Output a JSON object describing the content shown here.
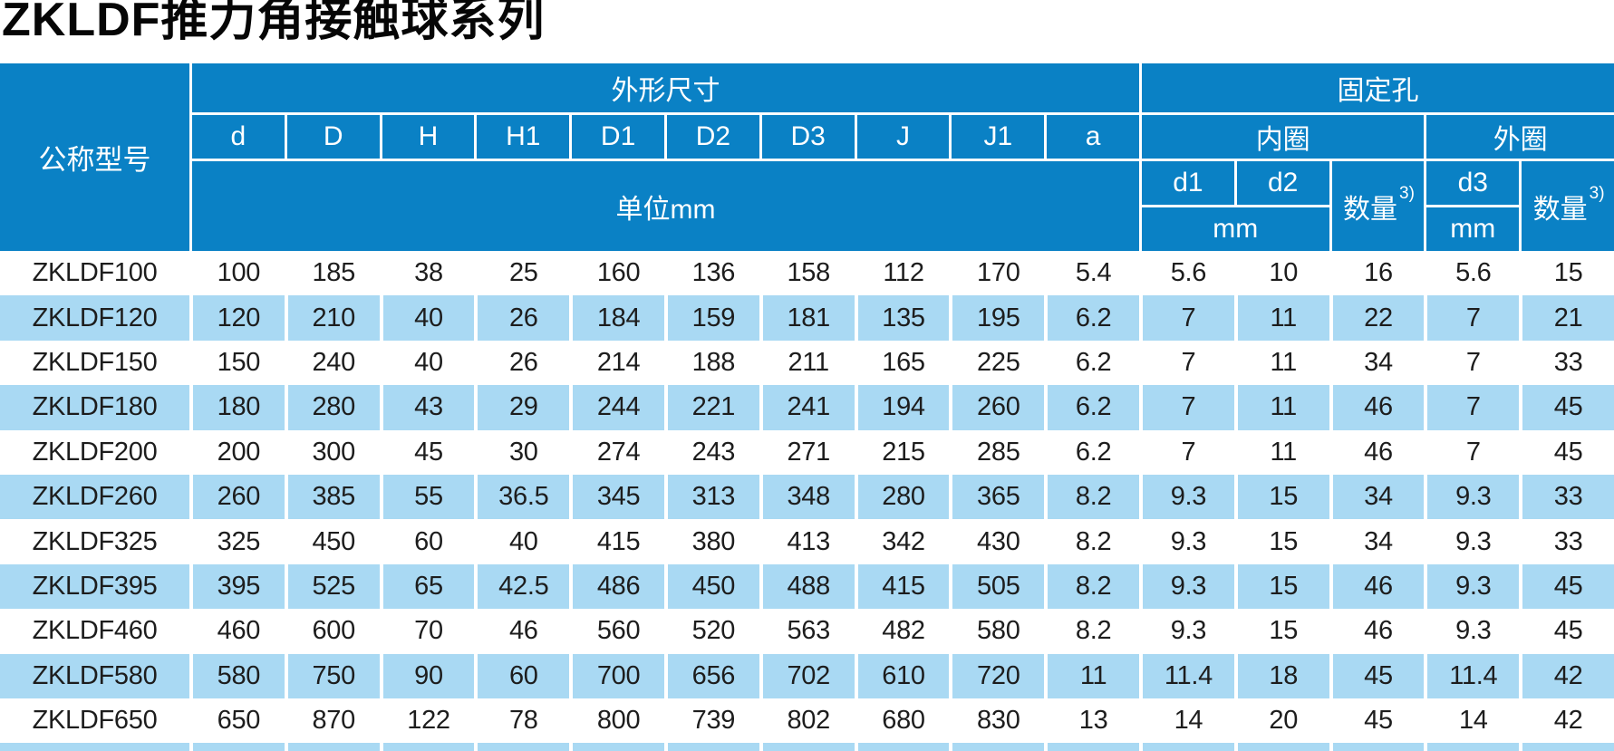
{
  "title": "ZKLDF推力角接触球系列",
  "table": {
    "model_header": "公称型号",
    "dim_section": "外形尺寸",
    "dim_cols": [
      "d",
      "D",
      "H",
      "H1",
      "D1",
      "D2",
      "D3",
      "J",
      "J1",
      "a"
    ],
    "dim_unit": "单位mm",
    "fix_section": "固定孔",
    "inner_label": "内圈",
    "outer_label": "外圈",
    "inner_cols": {
      "d1": "d1",
      "d2": "d2"
    },
    "outer_col": "d3",
    "qty_label": "数量",
    "qty_sup": "3)",
    "mm_inner": "mm",
    "mm_outer": "mm",
    "rows": [
      {
        "model": "ZKLDF100",
        "values": [
          "100",
          "185",
          "38",
          "25",
          "160",
          "136",
          "158",
          "112",
          "170",
          "5.4",
          "5.6",
          "10",
          "16",
          "5.6",
          "15"
        ]
      },
      {
        "model": "ZKLDF120",
        "values": [
          "120",
          "210",
          "40",
          "26",
          "184",
          "159",
          "181",
          "135",
          "195",
          "6.2",
          "7",
          "11",
          "22",
          "7",
          "21"
        ]
      },
      {
        "model": "ZKLDF150",
        "values": [
          "150",
          "240",
          "40",
          "26",
          "214",
          "188",
          "211",
          "165",
          "225",
          "6.2",
          "7",
          "11",
          "34",
          "7",
          "33"
        ]
      },
      {
        "model": "ZKLDF180",
        "values": [
          "180",
          "280",
          "43",
          "29",
          "244",
          "221",
          "241",
          "194",
          "260",
          "6.2",
          "7",
          "11",
          "46",
          "7",
          "45"
        ]
      },
      {
        "model": "ZKLDF200",
        "values": [
          "200",
          "300",
          "45",
          "30",
          "274",
          "243",
          "271",
          "215",
          "285",
          "6.2",
          "7",
          "11",
          "46",
          "7",
          "45"
        ]
      },
      {
        "model": "ZKLDF260",
        "values": [
          "260",
          "385",
          "55",
          "36.5",
          "345",
          "313",
          "348",
          "280",
          "365",
          "8.2",
          "9.3",
          "15",
          "34",
          "9.3",
          "33"
        ]
      },
      {
        "model": "ZKLDF325",
        "values": [
          "325",
          "450",
          "60",
          "40",
          "415",
          "380",
          "413",
          "342",
          "430",
          "8.2",
          "9.3",
          "15",
          "34",
          "9.3",
          "33"
        ]
      },
      {
        "model": "ZKLDF395",
        "values": [
          "395",
          "525",
          "65",
          "42.5",
          "486",
          "450",
          "488",
          "415",
          "505",
          "8.2",
          "9.3",
          "15",
          "46",
          "9.3",
          "45"
        ]
      },
      {
        "model": "ZKLDF460",
        "values": [
          "460",
          "600",
          "70",
          "46",
          "560",
          "520",
          "563",
          "482",
          "580",
          "8.2",
          "9.3",
          "15",
          "46",
          "9.3",
          "45"
        ]
      },
      {
        "model": "ZKLDF580",
        "values": [
          "580",
          "750",
          "90",
          "60",
          "700",
          "656",
          "702",
          "610",
          "720",
          "11",
          "11.4",
          "18",
          "45",
          "11.4",
          "42"
        ]
      },
      {
        "model": "ZKLDF650",
        "values": [
          "650",
          "870",
          "122",
          "78",
          "800",
          "739",
          "802",
          "680",
          "830",
          "13",
          "14",
          "20",
          "45",
          "14",
          "42"
        ]
      }
    ]
  },
  "colors": {
    "header_blue": "#0a81c5",
    "stripe_blue": "#a9d9f3",
    "text": "#1d1d1d"
  }
}
